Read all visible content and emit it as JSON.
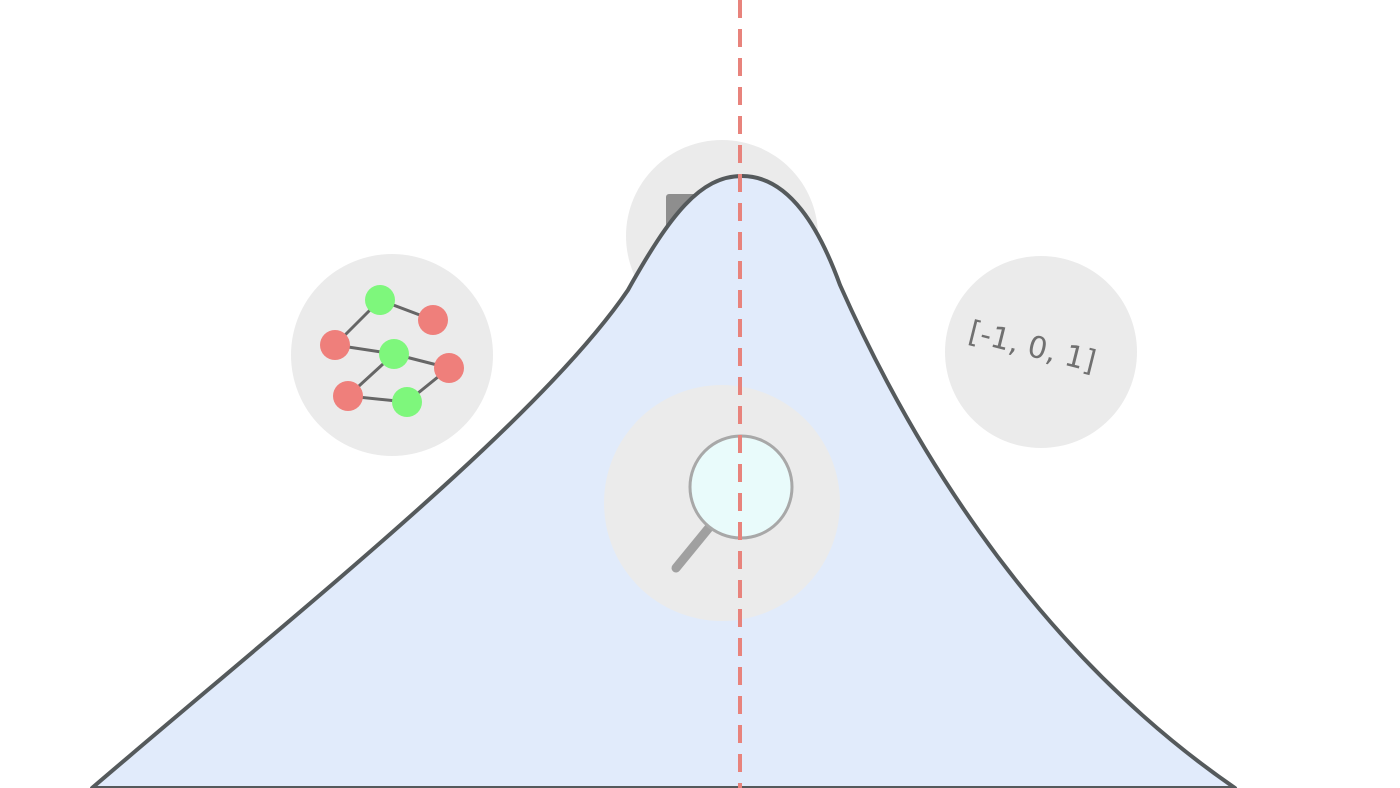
{
  "colors": {
    "background": "#ffffff",
    "badge_fill": "#ebebeb",
    "curve_fill": "#e1ebfb",
    "curve_stroke": "#555a5c",
    "center_line": "#e8837c",
    "node_red": "#ef7f7b",
    "node_green": "#7ef77c",
    "edge": "#666666",
    "lens_fill": "#e9fbfb",
    "lens_ring": "#a8a8a8",
    "handle": "#a0a0a0",
    "text": "#707070"
  },
  "badges": {
    "graph": {
      "icon": "graph-network-icon"
    },
    "document": {
      "icon": "document-icon"
    },
    "vector": {
      "icon": "vector-text-icon",
      "text": "[-1, 0, 1]"
    },
    "search": {
      "icon": "magnifier-icon"
    }
  }
}
